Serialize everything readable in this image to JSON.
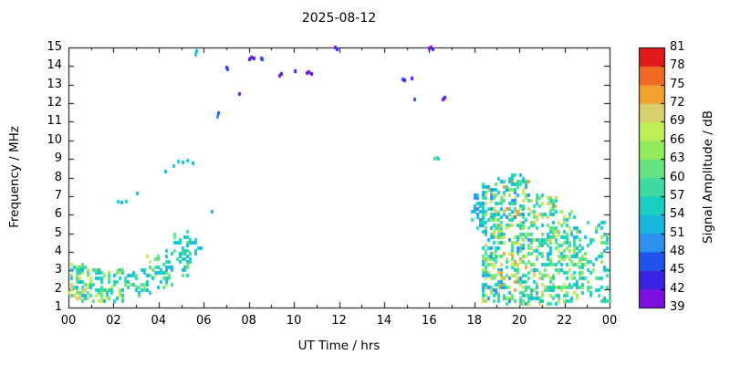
{
  "chart_data": {
    "type": "scatter",
    "title": "2025-08-12",
    "xlabel": "UT Time / hrs",
    "ylabel": "Frequency / MHz",
    "xlim": [
      0,
      24
    ],
    "ylim": [
      1,
      15
    ],
    "x_ticks": [
      "00",
      "02",
      "04",
      "06",
      "08",
      "10",
      "12",
      "14",
      "16",
      "18",
      "20",
      "22",
      "00"
    ],
    "x_tick_values": [
      0,
      2,
      4,
      6,
      8,
      10,
      12,
      14,
      16,
      18,
      20,
      22,
      24
    ],
    "y_ticks": [
      1,
      2,
      3,
      4,
      5,
      6,
      7,
      8,
      9,
      10,
      11,
      12,
      13,
      14,
      15
    ],
    "grid": false,
    "colorbar": {
      "label": "Signal Amplitude / dB",
      "min": 39,
      "max": 81,
      "step": 3,
      "ticks": [
        39,
        42,
        45,
        48,
        51,
        54,
        57,
        60,
        63,
        66,
        69,
        72,
        75,
        78,
        81
      ],
      "band_colors": [
        "#7a0fe0",
        "#3a23e6",
        "#2353ee",
        "#2b90ee",
        "#19b7de",
        "#17cfc0",
        "#3edaa2",
        "#66e27e",
        "#93ea5c",
        "#c0ee55",
        "#d9cf6e",
        "#f2a12f",
        "#f16a24",
        "#e31a1c"
      ]
    },
    "points": [
      [
        2.2,
        6.7,
        54
      ],
      [
        2.35,
        6.65,
        51
      ],
      [
        2.55,
        6.7,
        54
      ],
      [
        3.05,
        7.15,
        51
      ],
      [
        4.3,
        8.3,
        51
      ],
      [
        4.65,
        8.6,
        54
      ],
      [
        4.85,
        8.85,
        54
      ],
      [
        5.05,
        8.8,
        51
      ],
      [
        5.25,
        8.9,
        54
      ],
      [
        5.5,
        8.75,
        51
      ],
      [
        5.62,
        14.62,
        54
      ],
      [
        5.66,
        14.8,
        51
      ],
      [
        6.35,
        6.15,
        51
      ],
      [
        6.6,
        11.25,
        48
      ],
      [
        6.65,
        11.45,
        45
      ],
      [
        7.0,
        13.9,
        42
      ],
      [
        7.06,
        13.82,
        45
      ],
      [
        7.55,
        12.5,
        39
      ],
      [
        8.0,
        14.38,
        42
      ],
      [
        8.1,
        14.45,
        39
      ],
      [
        8.2,
        14.4,
        42
      ],
      [
        8.55,
        14.42,
        42
      ],
      [
        8.6,
        14.35,
        45
      ],
      [
        9.35,
        13.5,
        39
      ],
      [
        9.42,
        13.58,
        42
      ],
      [
        10.05,
        13.7,
        42
      ],
      [
        10.55,
        13.62,
        39
      ],
      [
        10.65,
        13.68,
        39
      ],
      [
        10.75,
        13.6,
        42
      ],
      [
        11.8,
        14.98,
        39
      ],
      [
        11.88,
        14.92,
        42
      ],
      [
        14.82,
        13.3,
        45
      ],
      [
        14.9,
        13.25,
        42
      ],
      [
        15.22,
        13.32,
        42
      ],
      [
        15.35,
        12.2,
        45
      ],
      [
        16.0,
        14.95,
        39
      ],
      [
        16.08,
        15.0,
        39
      ],
      [
        16.15,
        14.88,
        42
      ],
      [
        16.22,
        9.0,
        57
      ],
      [
        16.3,
        9.08,
        60
      ],
      [
        16.38,
        9.0,
        54
      ],
      [
        16.6,
        12.2,
        39
      ],
      [
        16.66,
        12.28,
        42
      ]
    ],
    "clusters": [
      {
        "t": [
          0.05,
          1.05
        ],
        "f": [
          1.3,
          3.35
        ],
        "n": 75,
        "amps": [
          51,
          54,
          54,
          57,
          57,
          60,
          63,
          66,
          69
        ]
      },
      {
        "t": [
          1.05,
          2.45
        ],
        "f": [
          1.25,
          3.05
        ],
        "n": 75,
        "amps": [
          51,
          54,
          54,
          57,
          60,
          63,
          66
        ]
      },
      {
        "t": [
          2.45,
          3.6
        ],
        "f": [
          1.6,
          3.1
        ],
        "n": 48,
        "amps": [
          51,
          54,
          57,
          60,
          63
        ]
      },
      {
        "t": [
          3.5,
          4.6
        ],
        "f": [
          2.0,
          3.7
        ],
        "n": 46,
        "amps": [
          51,
          54,
          57,
          60,
          66
        ]
      },
      {
        "t": [
          4.35,
          5.45
        ],
        "f": [
          2.6,
          4.9
        ],
        "n": 40,
        "amps": [
          51,
          54,
          54,
          57,
          60
        ]
      },
      {
        "t": [
          4.95,
          5.85
        ],
        "f": [
          3.6,
          5.3
        ],
        "n": 18,
        "amps": [
          51,
          54,
          57
        ]
      },
      {
        "t": [
          17.9,
          18.5
        ],
        "f": [
          5.2,
          7.1
        ],
        "n": 40,
        "amps": [
          48,
          48,
          51,
          51,
          54,
          54,
          57
        ]
      },
      {
        "t": [
          18.3,
          19.2
        ],
        "f": [
          1.3,
          7.6
        ],
        "n": 220,
        "amps": [
          48,
          51,
          54,
          54,
          57,
          57,
          60,
          63,
          66,
          69
        ]
      },
      {
        "t": [
          19.2,
          20.4
        ],
        "f": [
          1.2,
          7.9
        ],
        "n": 240,
        "amps": [
          48,
          51,
          54,
          54,
          57,
          57,
          60,
          63,
          66,
          69,
          72
        ]
      },
      {
        "t": [
          20.4,
          21.6
        ],
        "f": [
          1.2,
          7.0
        ],
        "n": 200,
        "amps": [
          51,
          54,
          54,
          57,
          57,
          60,
          63,
          66,
          69
        ]
      },
      {
        "t": [
          21.6,
          22.6
        ],
        "f": [
          1.2,
          6.2
        ],
        "n": 130,
        "amps": [
          51,
          54,
          54,
          57,
          60,
          63,
          66
        ]
      },
      {
        "t": [
          22.6,
          23.95
        ],
        "f": [
          1.3,
          5.6
        ],
        "n": 100,
        "amps": [
          51,
          54,
          54,
          57,
          60,
          63
        ]
      },
      {
        "t": [
          19.0,
          20.3
        ],
        "f": [
          7.6,
          8.2
        ],
        "n": 14,
        "amps": [
          51,
          54,
          57
        ]
      }
    ]
  }
}
